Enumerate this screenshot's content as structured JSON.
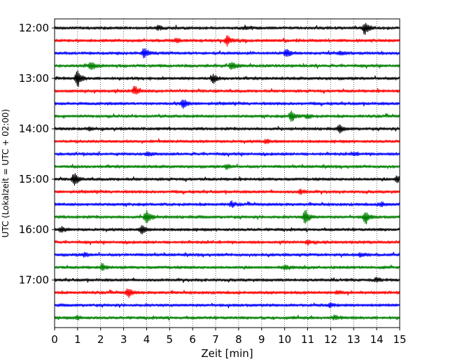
{
  "chart_data": {
    "type": "line",
    "title": "",
    "xlabel": "Zeit  [min]",
    "ylabel": "UTC (Lokalzeit = UTC + 02:00)",
    "xlim": [
      0,
      15
    ],
    "x_ticks": [
      0,
      1,
      2,
      3,
      4,
      5,
      6,
      7,
      8,
      9,
      10,
      11,
      12,
      13,
      14,
      15
    ],
    "y_ticks": [
      {
        "label": "12:00",
        "trace_index": 0
      },
      {
        "label": "13:00",
        "trace_index": 4
      },
      {
        "label": "14:00",
        "trace_index": 8
      },
      {
        "label": "15:00",
        "trace_index": 12
      },
      {
        "label": "16:00",
        "trace_index": 16
      },
      {
        "label": "17:00",
        "trace_index": 20
      }
    ],
    "trace_minutes": 15,
    "series_colors": [
      "#000000",
      "#ff0000",
      "#0000ff",
      "#008000"
    ],
    "grid": {
      "x": true,
      "y": false
    },
    "traces": [
      {
        "start": "12:00",
        "events": [
          {
            "t": 13.5,
            "amp": 1.0
          },
          {
            "t": 4.5,
            "amp": 0.35
          },
          {
            "t": 8.3,
            "amp": 0.3
          }
        ]
      },
      {
        "start": "12:15",
        "events": [
          {
            "t": 7.5,
            "amp": 0.8
          },
          {
            "t": 5.3,
            "amp": 0.3
          }
        ]
      },
      {
        "start": "12:30",
        "events": [
          {
            "t": 3.9,
            "amp": 0.85
          },
          {
            "t": 10.1,
            "amp": 0.7
          },
          {
            "t": 12.4,
            "amp": 0.3
          }
        ]
      },
      {
        "start": "12:45",
        "events": [
          {
            "t": 1.6,
            "amp": 0.75
          },
          {
            "t": 7.7,
            "amp": 0.85
          }
        ]
      },
      {
        "start": "13:00",
        "events": [
          {
            "t": 1.0,
            "amp": 1.4
          },
          {
            "t": 6.9,
            "amp": 0.7
          }
        ]
      },
      {
        "start": "13:15",
        "events": [
          {
            "t": 3.5,
            "amp": 0.75
          }
        ]
      },
      {
        "start": "13:30",
        "events": [
          {
            "t": 5.6,
            "amp": 0.8
          }
        ]
      },
      {
        "start": "13:45",
        "events": [
          {
            "t": 10.3,
            "amp": 1.0
          },
          {
            "t": 11.0,
            "amp": 0.35
          }
        ]
      },
      {
        "start": "14:00",
        "events": [
          {
            "t": 12.4,
            "amp": 0.55
          },
          {
            "t": 1.5,
            "amp": 0.25
          }
        ]
      },
      {
        "start": "14:15",
        "events": [
          {
            "t": 9.2,
            "amp": 0.3
          }
        ]
      },
      {
        "start": "14:30",
        "events": [
          {
            "t": 4.1,
            "amp": 0.35
          },
          {
            "t": 13.0,
            "amp": 0.25
          }
        ]
      },
      {
        "start": "14:45",
        "events": [
          {
            "t": 7.5,
            "amp": 0.35
          }
        ]
      },
      {
        "start": "15:00",
        "events": [
          {
            "t": 0.85,
            "amp": 1.1
          },
          {
            "t": 14.9,
            "amp": 0.55
          }
        ]
      },
      {
        "start": "15:15",
        "events": [
          {
            "t": 10.7,
            "amp": 0.35
          }
        ]
      },
      {
        "start": "15:30",
        "events": [
          {
            "t": 7.7,
            "amp": 0.4
          },
          {
            "t": 14.2,
            "amp": 0.35
          }
        ]
      },
      {
        "start": "15:45",
        "events": [
          {
            "t": 4.0,
            "amp": 1.2
          },
          {
            "t": 10.9,
            "amp": 1.3
          },
          {
            "t": 13.5,
            "amp": 1.1
          }
        ]
      },
      {
        "start": "16:00",
        "events": [
          {
            "t": 3.8,
            "amp": 0.65
          },
          {
            "t": 0.3,
            "amp": 0.4
          }
        ]
      },
      {
        "start": "16:15",
        "events": [
          {
            "t": 11.0,
            "amp": 0.3
          }
        ]
      },
      {
        "start": "16:30",
        "events": [
          {
            "t": 1.3,
            "amp": 0.3
          },
          {
            "t": 13.3,
            "amp": 0.3
          }
        ]
      },
      {
        "start": "16:45",
        "events": [
          {
            "t": 2.1,
            "amp": 0.45
          },
          {
            "t": 10.0,
            "amp": 0.3
          }
        ]
      },
      {
        "start": "17:00",
        "events": [
          {
            "t": 14.0,
            "amp": 0.35
          }
        ]
      },
      {
        "start": "17:15",
        "events": [
          {
            "t": 3.2,
            "amp": 0.75
          },
          {
            "t": 12.3,
            "amp": 0.3
          }
        ]
      },
      {
        "start": "17:30",
        "events": [
          {
            "t": 12.0,
            "amp": 0.3
          }
        ]
      },
      {
        "start": "17:45",
        "events": [
          {
            "t": 12.2,
            "amp": 0.3
          },
          {
            "t": 1.0,
            "amp": 0.25
          }
        ]
      }
    ]
  }
}
